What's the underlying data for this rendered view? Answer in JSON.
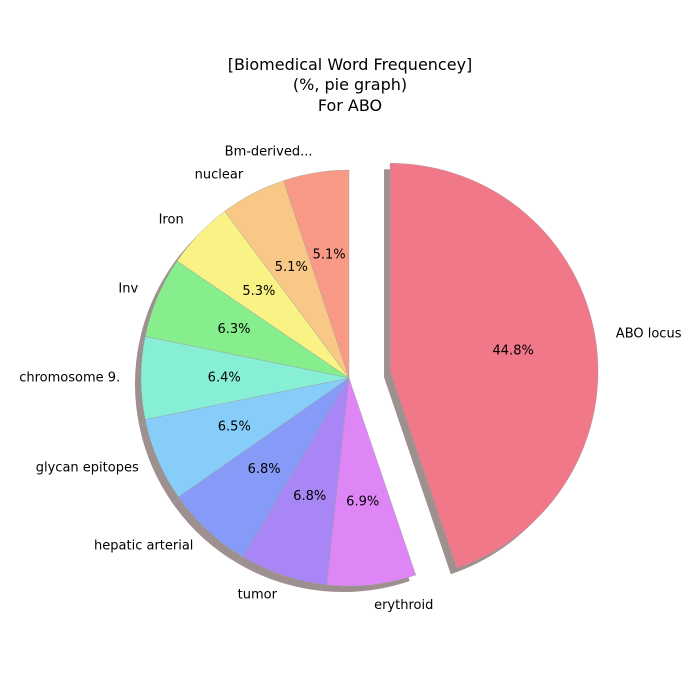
{
  "chart_data": {
    "type": "pie",
    "title_lines": [
      "[Biomedical Word Frequencey]",
      "(%, pie graph)",
      "For ABO"
    ],
    "start_angle_deg": 90,
    "direction": "counterclockwise",
    "shadow": true,
    "slices": [
      {
        "label": "Bm-derived...",
        "value": 5.1,
        "pct_label": "5.1%",
        "color": "#f99a86",
        "explode": 0
      },
      {
        "label": "nuclear",
        "value": 5.1,
        "pct_label": "5.1%",
        "color": "#f9c886",
        "explode": 0
      },
      {
        "label": "Iron",
        "value": 5.3,
        "pct_label": "5.3%",
        "color": "#f9f386",
        "explode": 0
      },
      {
        "label": "Inv",
        "value": 6.3,
        "pct_label": "6.3%",
        "color": "#86ee8c",
        "explode": 0
      },
      {
        "label": "chromosome 9.",
        "value": 6.4,
        "pct_label": "6.4%",
        "color": "#86efd6",
        "explode": 0
      },
      {
        "label": "glycan epitopes",
        "value": 6.5,
        "pct_label": "6.5%",
        "color": "#86cef9",
        "explode": 0
      },
      {
        "label": "hepatic arterial",
        "value": 6.8,
        "pct_label": "6.8%",
        "color": "#869bf7",
        "explode": 0
      },
      {
        "label": "tumor",
        "value": 6.8,
        "pct_label": "6.8%",
        "color": "#a886f5",
        "explode": 0
      },
      {
        "label": "erythroid",
        "value": 6.9,
        "pct_label": "6.9%",
        "color": "#df86f6",
        "explode": 0
      },
      {
        "label": "ABO locus",
        "value": 44.8,
        "pct_label": "44.8%",
        "color": "#f07888",
        "explode": 1
      }
    ]
  }
}
